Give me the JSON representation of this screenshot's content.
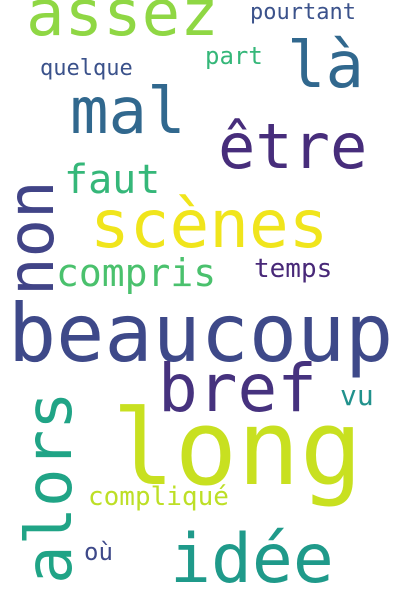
{
  "cloud": {
    "words": {
      "assez": {
        "text": "assez",
        "color": "#8fd744"
      },
      "pourtant": {
        "text": "pourtant",
        "color": "#3b528b"
      },
      "la": {
        "text": "là",
        "color": "#31688e"
      },
      "part": {
        "text": "part",
        "color": "#35b779"
      },
      "quelque": {
        "text": "quelque",
        "color": "#3b528b"
      },
      "mal": {
        "text": "mal",
        "color": "#31688e"
      },
      "etre": {
        "text": "être",
        "color": "#472d7b"
      },
      "non": {
        "text": "non",
        "color": "#414487"
      },
      "faut": {
        "text": "faut",
        "color": "#35b779"
      },
      "scenes": {
        "text": "scènes",
        "color": "#f0e51c"
      },
      "compris": {
        "text": "compris",
        "color": "#4ac16d"
      },
      "temps": {
        "text": "temps",
        "color": "#482878"
      },
      "beaucoup": {
        "text": "beaucoup",
        "color": "#3e4989"
      },
      "alors": {
        "text": "alors",
        "color": "#20a486"
      },
      "bref": {
        "text": "bref",
        "color": "#46327e"
      },
      "vu": {
        "text": "vu",
        "color": "#21918c"
      },
      "long": {
        "text": "long",
        "color": "#c8e020"
      },
      "complique": {
        "text": "compliqué",
        "color": "#bddf26"
      },
      "idee": {
        "text": "idée",
        "color": "#1f9a8a"
      },
      "ou": {
        "text": "où",
        "color": "#3e4989"
      }
    }
  }
}
